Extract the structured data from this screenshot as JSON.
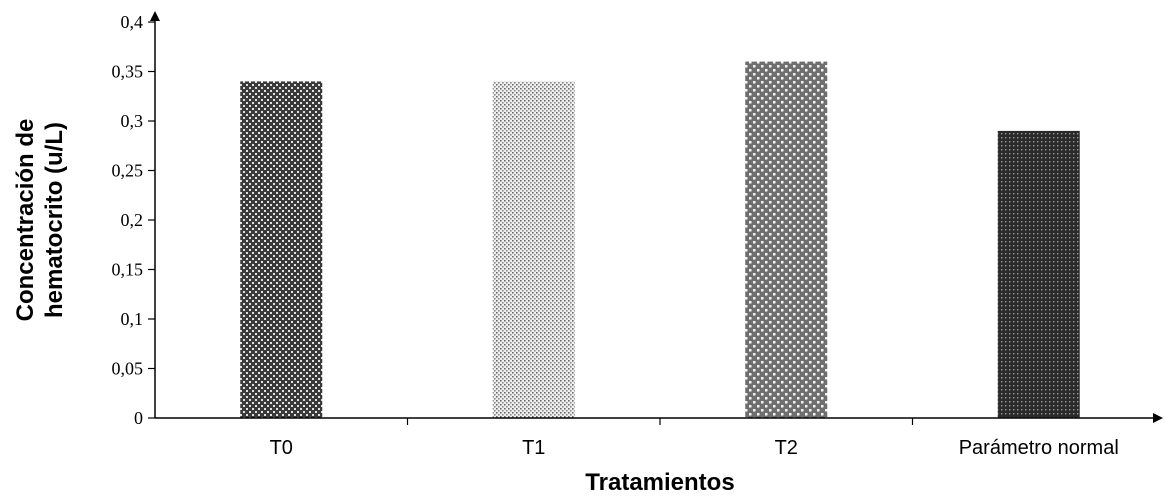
{
  "chart_data": {
    "type": "bar",
    "categories": [
      "T0",
      "T1",
      "T2",
      "Parámetro normal"
    ],
    "values": [
      0.34,
      0.34,
      0.36,
      0.29
    ],
    "xlabel": "Tratamientos",
    "ylabel_lines": [
      "Concentración de",
      "hematocrito (u/L)"
    ],
    "ylim": [
      0,
      0.4
    ],
    "yticks": [
      0,
      0.05,
      0.1,
      0.15,
      0.2,
      0.25,
      0.3,
      0.35,
      0.4
    ],
    "ytick_labels": [
      "0",
      "0,05",
      "0,1",
      "0,15",
      "0,2",
      "0,25",
      "0,3",
      "0,35",
      "0,4"
    ],
    "grid": false,
    "legend": "none",
    "bar_patterns": [
      "dense-cross",
      "fine-dots",
      "open-check",
      "dark-dots"
    ]
  }
}
